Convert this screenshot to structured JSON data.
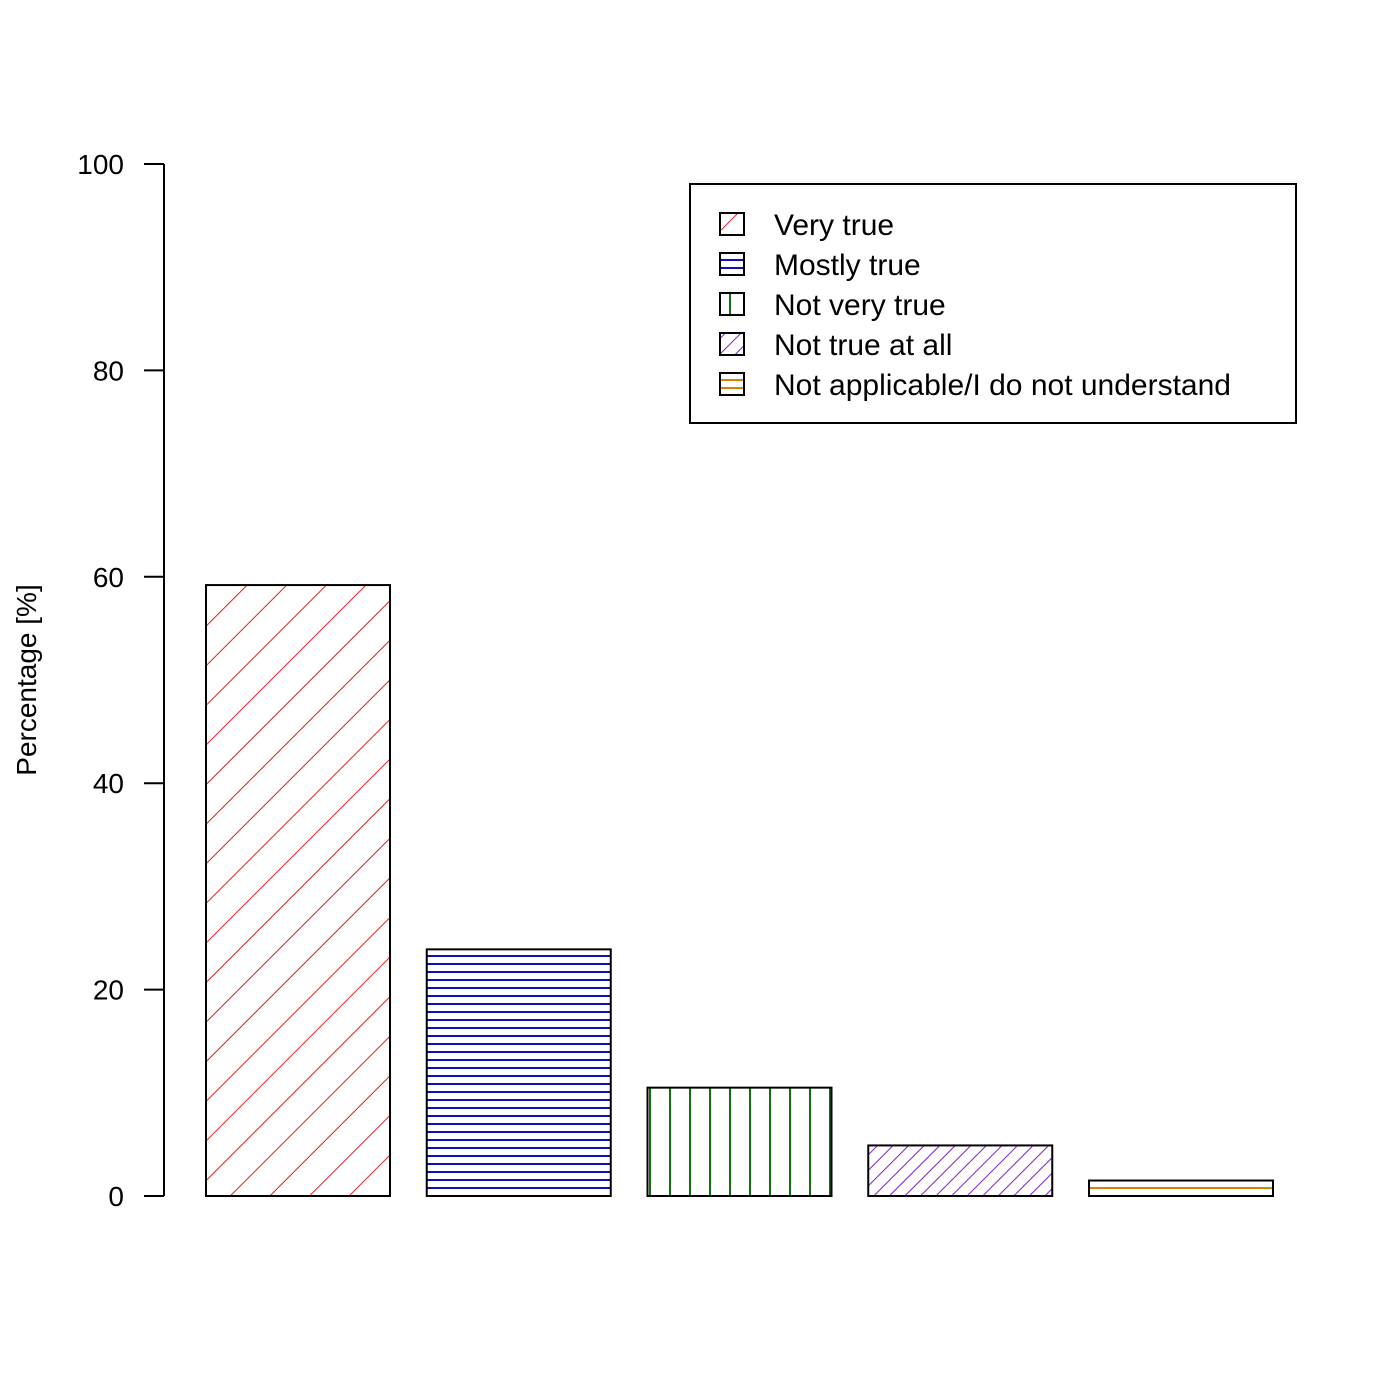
{
  "chart_data": {
    "type": "bar",
    "title": "",
    "xlabel": "",
    "ylabel": "Percentage [%]",
    "ylim": [
      0,
      100
    ],
    "yticks": [
      "0",
      "20",
      "40",
      "60",
      "80",
      "100"
    ],
    "grid": false,
    "legend_position": "top-right",
    "categories": [
      "Very true",
      "Mostly true",
      "Not very true",
      "Not true at all",
      "Not applicable/I do not understand"
    ],
    "values": [
      59.2,
      23.9,
      10.5,
      4.9,
      1.5
    ],
    "colors": [
      "#e02020",
      "#1010c0",
      "#107010",
      "#8020d0",
      "#e08000"
    ],
    "fill_patterns": [
      "diagonal-wide",
      "horizontal",
      "vertical",
      "diagonal-dense",
      "horizontal"
    ]
  }
}
